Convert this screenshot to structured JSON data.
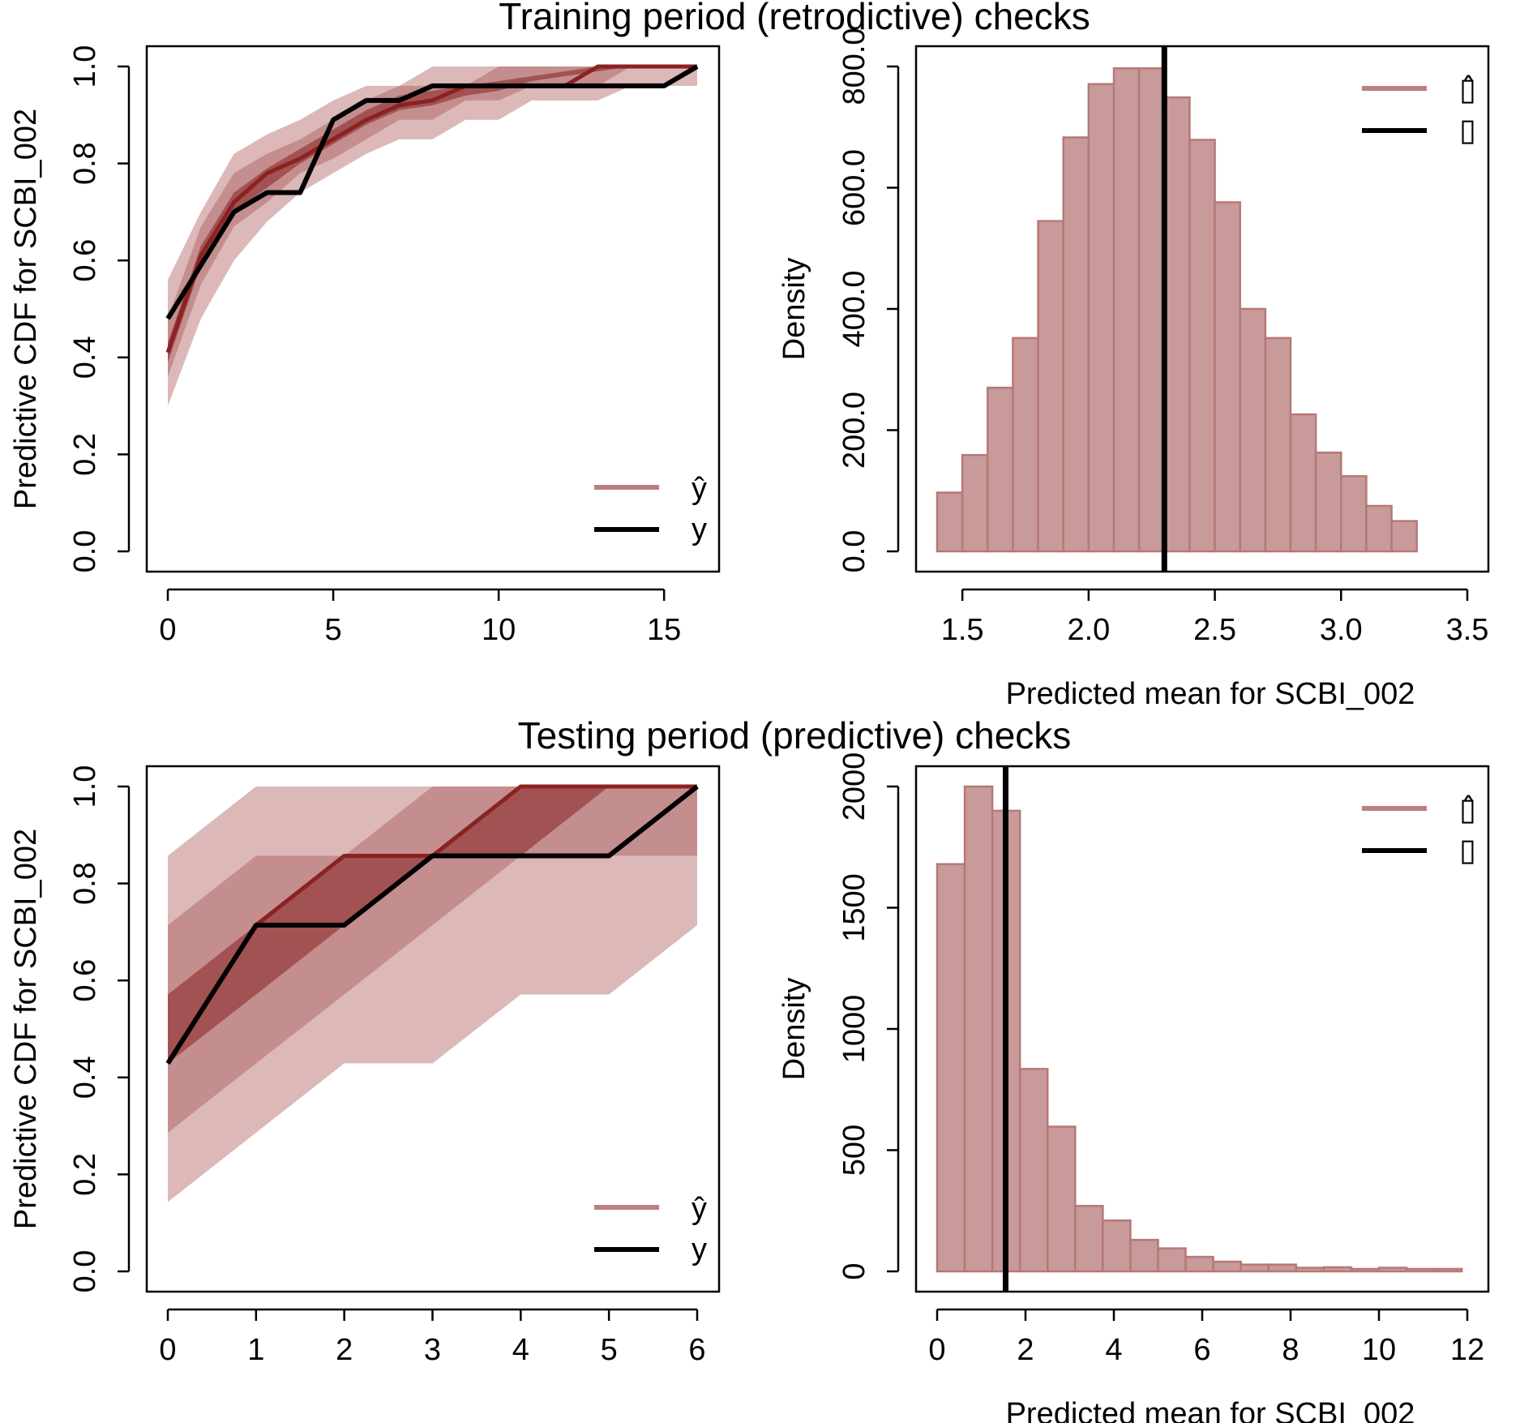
{
  "colors": {
    "band_light": "#dcb8b8",
    "band_mid": "#c48e8e",
    "band_dark": "#a25252",
    "median": "#8b2222",
    "hist_fill": "#c89a9a",
    "hist_stroke": "#b67878",
    "legend_yhat": "#bb8080",
    "observed": "#000000"
  },
  "titles": {
    "top": "Training period (retrodictive) checks",
    "bottom": "Testing period (predictive) checks"
  },
  "panels": {
    "tl": {
      "ylabel": "Predictive CDF for SCBI_002",
      "legend_yhat": "ŷ",
      "legend_y": "y"
    },
    "tr": {
      "ylabel": "Density",
      "xlabel": "Predicted mean for SCBI_002",
      "legend_yhat": "▯̂",
      "legend_y": "▯"
    },
    "bl": {
      "ylabel": "Predictive CDF for SCBI_002",
      "legend_yhat": "ŷ",
      "legend_y": "y"
    },
    "br": {
      "ylabel": "Density",
      "xlabel": "Predicted mean for SCBI_002",
      "legend_yhat": "▯̂",
      "legend_y": "▯"
    }
  },
  "chart_data": [
    {
      "panel": "tl",
      "type": "area",
      "xlim": [
        0,
        16
      ],
      "ylim": [
        0,
        1
      ],
      "xticks": [
        0,
        5,
        10,
        15
      ],
      "yticks": [
        0.0,
        0.2,
        0.4,
        0.6,
        0.8,
        1.0
      ],
      "x": [
        0,
        1,
        2,
        3,
        4,
        5,
        6,
        7,
        8,
        9,
        10,
        11,
        12,
        13,
        14,
        15,
        16
      ],
      "bands": [
        {
          "level": "outer",
          "lower": [
            0.3,
            0.48,
            0.6,
            0.68,
            0.74,
            0.78,
            0.82,
            0.85,
            0.85,
            0.89,
            0.89,
            0.93,
            0.93,
            0.93,
            0.96,
            0.96,
            0.96
          ],
          "upper": [
            0.56,
            0.7,
            0.82,
            0.86,
            0.89,
            0.93,
            0.96,
            0.96,
            1.0,
            1.0,
            1.0,
            1.0,
            1.0,
            1.0,
            1.0,
            1.0,
            1.0
          ]
        },
        {
          "level": "middle",
          "lower": [
            0.36,
            0.55,
            0.67,
            0.72,
            0.78,
            0.81,
            0.85,
            0.89,
            0.89,
            0.93,
            0.93,
            0.96,
            0.96,
            0.96,
            1.0,
            1.0,
            1.0
          ],
          "upper": [
            0.48,
            0.67,
            0.78,
            0.82,
            0.85,
            0.89,
            0.93,
            0.96,
            0.96,
            0.96,
            1.0,
            1.0,
            1.0,
            1.0,
            1.0,
            1.0,
            1.0
          ]
        },
        {
          "level": "inner",
          "lower": [
            0.39,
            0.59,
            0.7,
            0.75,
            0.8,
            0.84,
            0.88,
            0.91,
            0.92,
            0.94,
            0.95,
            0.97,
            0.98,
            0.99,
            1.0,
            1.0,
            1.0
          ],
          "upper": [
            0.43,
            0.63,
            0.74,
            0.79,
            0.83,
            0.87,
            0.91,
            0.94,
            0.95,
            0.96,
            0.97,
            0.98,
            0.99,
            1.0,
            1.0,
            1.0,
            1.0
          ]
        }
      ],
      "median": [
        0.41,
        0.61,
        0.72,
        0.78,
        0.81,
        0.85,
        0.89,
        0.92,
        0.93,
        0.96,
        0.96,
        0.96,
        0.96,
        1.0,
        1.0,
        1.0,
        1.0
      ],
      "observed": [
        0.48,
        0.59,
        0.7,
        0.74,
        0.74,
        0.89,
        0.93,
        0.93,
        0.96,
        0.96,
        0.96,
        0.96,
        0.96,
        0.96,
        0.96,
        0.96,
        1.0
      ]
    },
    {
      "panel": "tr",
      "type": "bar",
      "xlim": [
        1.4,
        3.5
      ],
      "ylim": [
        0,
        800
      ],
      "xticks": [
        1.5,
        2.0,
        2.5,
        3.0,
        3.5
      ],
      "yticks": [
        0,
        200,
        400,
        600,
        800
      ],
      "bin_start": 1.4,
      "bin_width": 0.1,
      "values": [
        97,
        159,
        270,
        352,
        545,
        683,
        771,
        797,
        797,
        749,
        679,
        576,
        400,
        352,
        226,
        163,
        124,
        75,
        50
      ],
      "observed_x": 2.3
    },
    {
      "panel": "bl",
      "type": "area",
      "xlim": [
        0,
        6
      ],
      "ylim": [
        0,
        1
      ],
      "xticks": [
        0,
        1,
        2,
        3,
        4,
        5,
        6
      ],
      "yticks": [
        0.0,
        0.2,
        0.4,
        0.6,
        0.8,
        1.0
      ],
      "x": [
        0,
        1,
        2,
        3,
        4,
        5,
        6
      ],
      "bands": [
        {
          "level": "outer",
          "lower": [
            0.143,
            0.286,
            0.429,
            0.429,
            0.571,
            0.571,
            0.714
          ],
          "upper": [
            0.857,
            1.0,
            1.0,
            1.0,
            1.0,
            1.0,
            1.0
          ]
        },
        {
          "level": "middle",
          "lower": [
            0.286,
            0.429,
            0.571,
            0.714,
            0.857,
            0.857,
            0.857
          ],
          "upper": [
            0.714,
            0.857,
            0.857,
            1.0,
            1.0,
            1.0,
            1.0
          ]
        },
        {
          "level": "inner",
          "lower": [
            0.429,
            0.571,
            0.714,
            0.857,
            0.857,
            1.0,
            1.0
          ],
          "upper": [
            0.571,
            0.714,
            0.857,
            0.857,
            1.0,
            1.0,
            1.0
          ]
        }
      ],
      "median": [
        0.429,
        0.714,
        0.857,
        0.857,
        1.0,
        1.0,
        1.0
      ],
      "observed": [
        0.429,
        0.714,
        0.714,
        0.857,
        0.857,
        0.857,
        1.0
      ]
    },
    {
      "panel": "br",
      "type": "bar",
      "xlim": [
        0,
        12
      ],
      "ylim": [
        0,
        2000
      ],
      "xticks": [
        0,
        2,
        4,
        6,
        8,
        10,
        12
      ],
      "yticks": [
        0,
        500,
        1000,
        1500,
        2000
      ],
      "bin_start": 0,
      "bin_width": 0.625,
      "values": [
        1680,
        2000,
        1900,
        835,
        597,
        270,
        210,
        130,
        95,
        60,
        40,
        28,
        28,
        15,
        17,
        10,
        15,
        10,
        10
      ],
      "observed_x": 1.55
    }
  ]
}
